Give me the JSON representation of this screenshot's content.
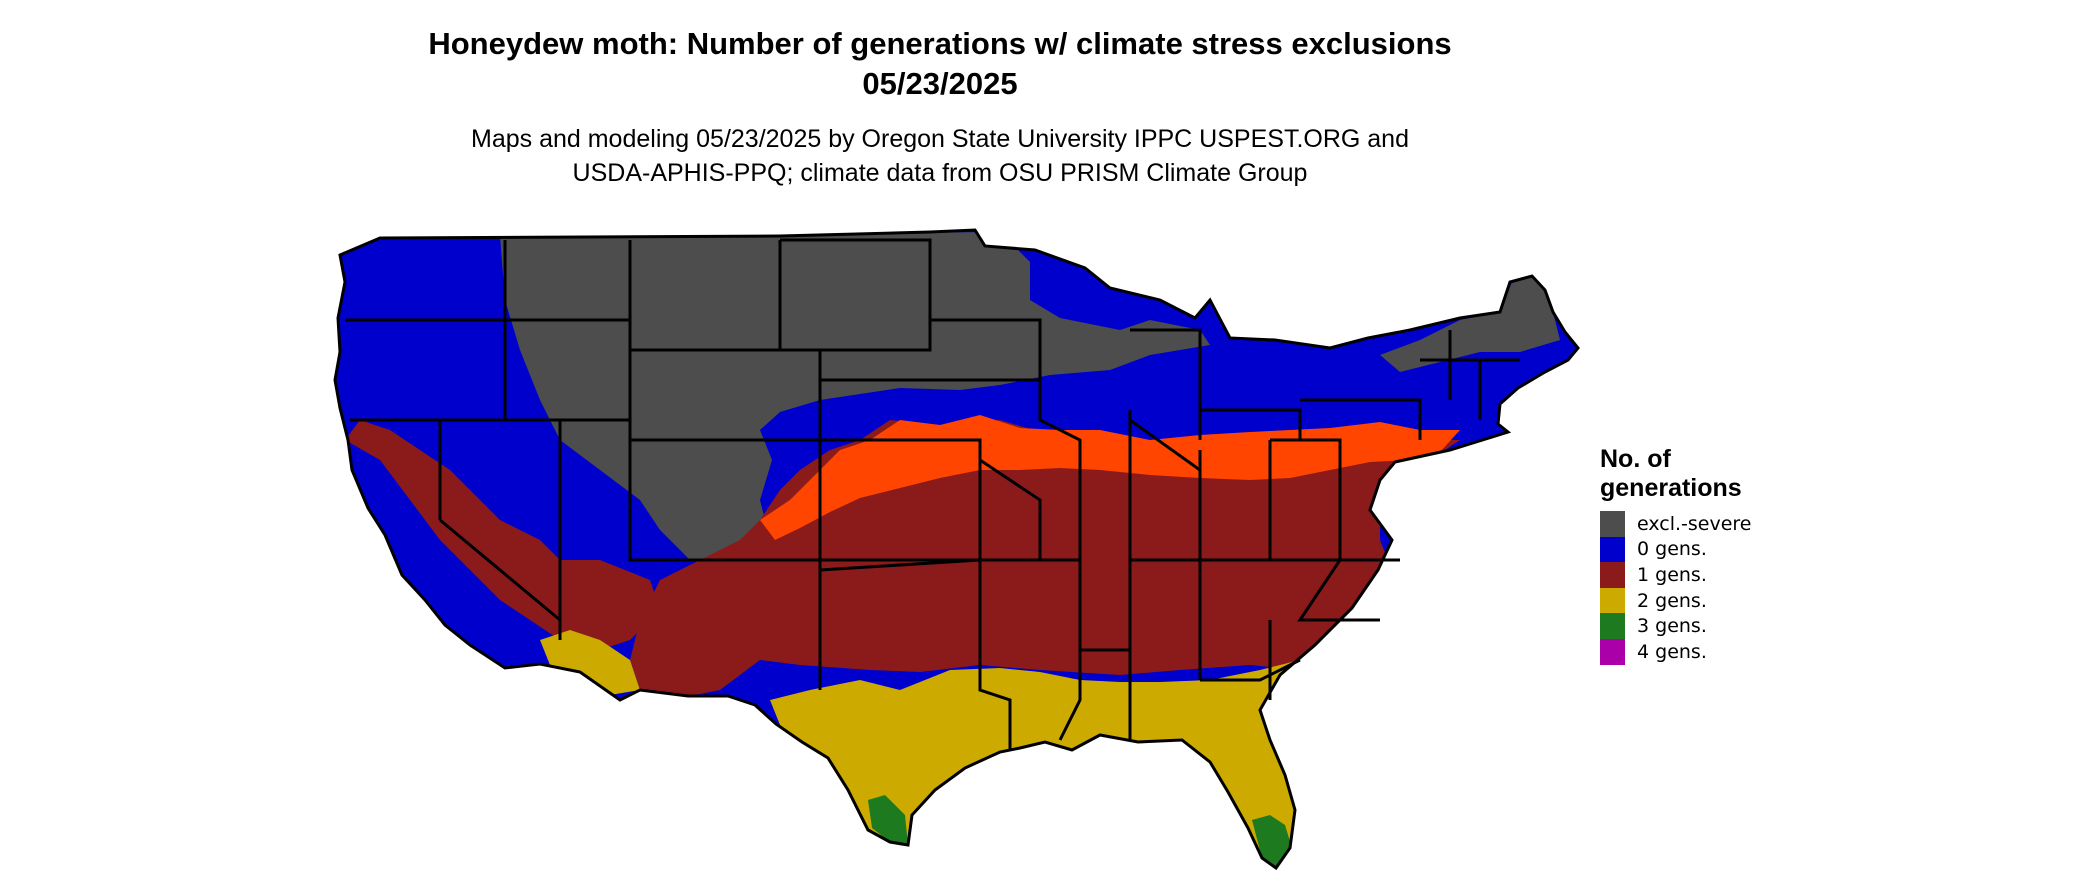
{
  "title_line1": "Honeydew moth: Number of generations w/ climate stress exclusions",
  "title_line2": "05/23/2025",
  "subtitle_line1": "Maps and modeling 05/23/2025 by Oregon State University IPPC USPEST.ORG and",
  "subtitle_line2": "USDA-APHIS-PPQ; climate data from OSU PRISM Climate Group",
  "legend": {
    "title_line1": "No. of",
    "title_line2": "generations",
    "items": [
      {
        "label": "excl.-severe",
        "color": "#4d4d4d"
      },
      {
        "label": "0 gens.",
        "color": "#0000cc"
      },
      {
        "label": "1 gens.",
        "color": "#8b1a1a"
      },
      {
        "label": "2 gens.",
        "color": "#ccaa00"
      },
      {
        "label": "3 gens.",
        "color": "#1e7a1e"
      },
      {
        "label": "4 gens.",
        "color": "#aa00aa"
      }
    ]
  },
  "colors": {
    "excl_severe": "#4d4d4d",
    "gens_0": "#0000cc",
    "gens_1": "#8b1a1a",
    "gens_1_edge": "#ff4500",
    "gens_2": "#ccaa00",
    "gens_3": "#1e7a1e",
    "gens_3_edge": "#77dd99",
    "border": "#000000"
  }
}
